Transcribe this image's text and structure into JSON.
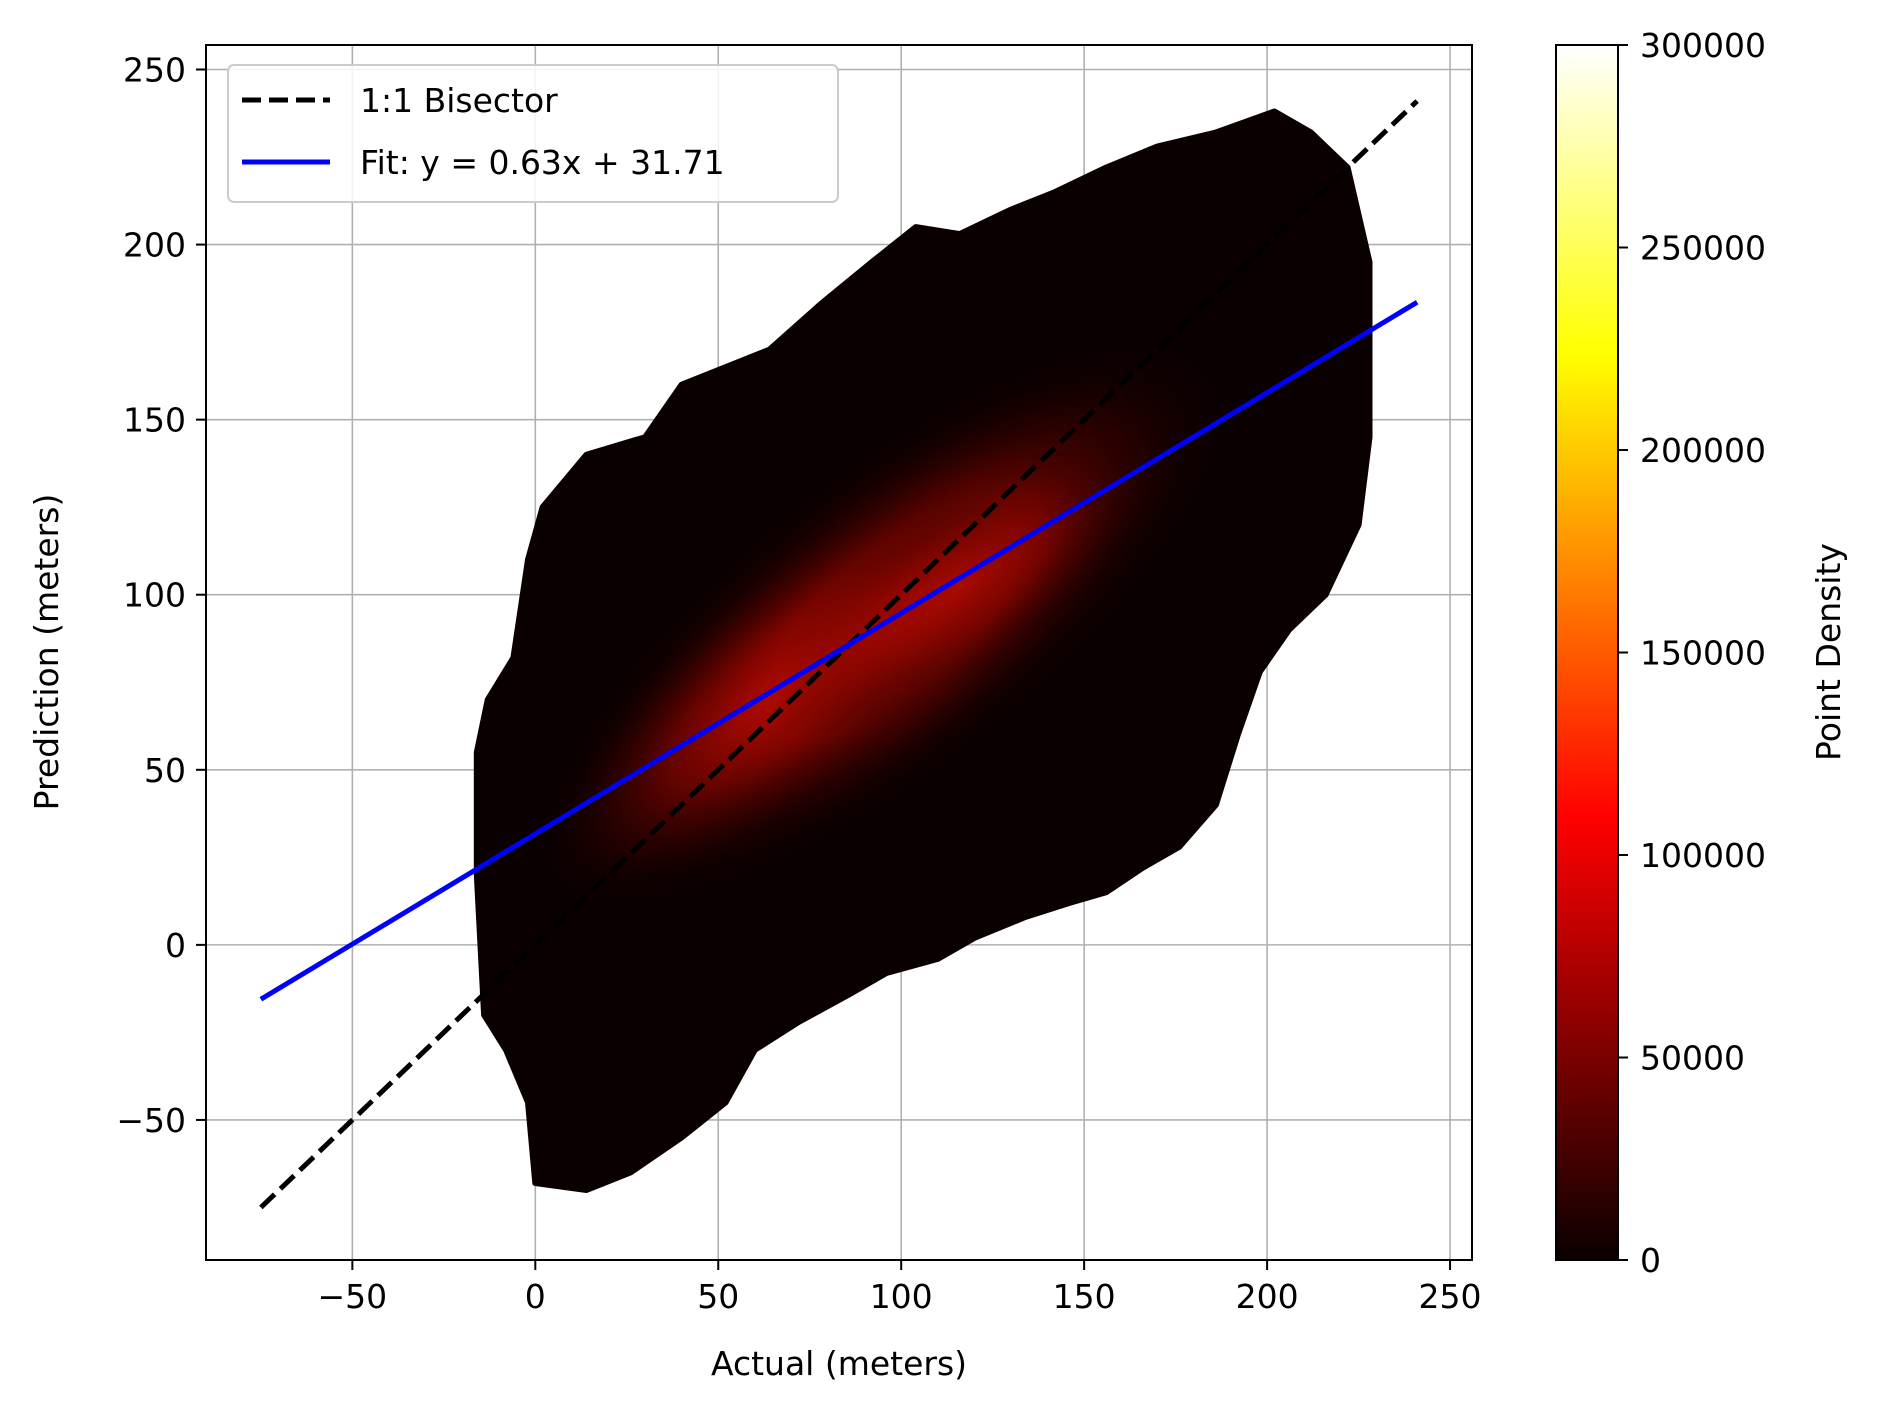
{
  "chart_data": {
    "type": "hexbin",
    "title": "",
    "xlabel": "Actual (meters)",
    "ylabel": "Prediction (meters)",
    "xlim": [
      -90,
      256
    ],
    "ylim": [
      -90,
      257
    ],
    "xticks": [
      -50,
      0,
      50,
      100,
      150,
      200,
      250
    ],
    "xtick_labels": [
      "−50",
      "0",
      "50",
      "100",
      "150",
      "200",
      "250"
    ],
    "yticks": [
      -50,
      0,
      50,
      100,
      150,
      200,
      250
    ],
    "ytick_labels": [
      "−50",
      "0",
      "50",
      "100",
      "150",
      "200",
      "250"
    ],
    "grid": true,
    "colormap": "hot",
    "colorbar": {
      "label": "Point Density",
      "min": 0,
      "max": 300000,
      "ticks": [
        0,
        50000,
        100000,
        150000,
        200000,
        250000,
        300000
      ],
      "tick_labels": [
        "0",
        "50000",
        "100000",
        "150000",
        "200000",
        "250000",
        "300000"
      ]
    },
    "density_region": {
      "outline": [
        [
          -16,
          20
        ],
        [
          -16,
          55
        ],
        [
          -13,
          70
        ],
        [
          -6,
          82
        ],
        [
          -2,
          110
        ],
        [
          2,
          125
        ],
        [
          14,
          140
        ],
        [
          30,
          145
        ],
        [
          40,
          160
        ],
        [
          52,
          165
        ],
        [
          64,
          170
        ],
        [
          78,
          183
        ],
        [
          92,
          195
        ],
        [
          104,
          205
        ],
        [
          116,
          203
        ],
        [
          130,
          210
        ],
        [
          142,
          215
        ],
        [
          156,
          222
        ],
        [
          170,
          228
        ],
        [
          186,
          232
        ],
        [
          202,
          238
        ],
        [
          212,
          232
        ],
        [
          222,
          222
        ],
        [
          228,
          195
        ],
        [
          228,
          145
        ],
        [
          225,
          120
        ],
        [
          216,
          100
        ],
        [
          206,
          90
        ],
        [
          198,
          78
        ],
        [
          192,
          60
        ],
        [
          186,
          40
        ],
        [
          176,
          28
        ],
        [
          166,
          22
        ],
        [
          156,
          15
        ],
        [
          146,
          12
        ],
        [
          134,
          8
        ],
        [
          120,
          2
        ],
        [
          110,
          -4
        ],
        [
          96,
          -8
        ],
        [
          86,
          -14
        ],
        [
          72,
          -22
        ],
        [
          60,
          -30
        ],
        [
          52,
          -45
        ],
        [
          40,
          -55
        ],
        [
          26,
          -65
        ],
        [
          14,
          -70
        ],
        [
          0,
          -68
        ],
        [
          -2,
          -45
        ],
        [
          -8,
          -30
        ],
        [
          -14,
          -20
        ]
      ],
      "peak_center": [
        96,
        92
      ],
      "peak_value": 95000
    },
    "series": [
      {
        "name": "1:1 Bisector",
        "style": "dashed",
        "color": "#000000",
        "x": [
          -75,
          241
        ],
        "y": [
          -75,
          241
        ]
      },
      {
        "name": "Fit: y = 0.63x + 31.71",
        "style": "solid",
        "color": "#0000ff",
        "slope": 0.63,
        "intercept": 31.71,
        "x": [
          -75,
          241
        ],
        "y": [
          -15.54,
          183.54
        ]
      }
    ],
    "legend_position": "upper-left"
  }
}
